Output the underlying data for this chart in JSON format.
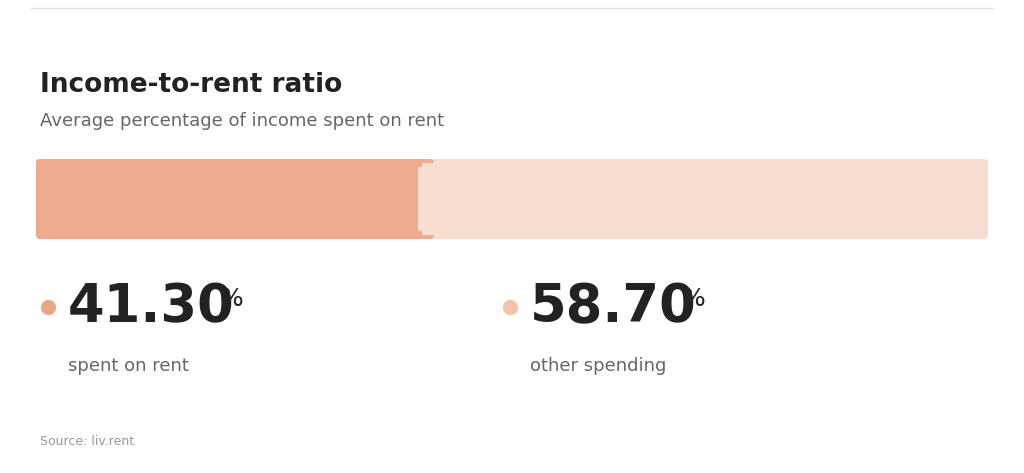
{
  "title": "Income-to-rent ratio",
  "subtitle": "Average percentage of income spent on rent",
  "source": "Source: liv.rent",
  "rent_pct": 41.3,
  "other_pct": 58.7,
  "rent_label": "spent on rent",
  "other_label": "other spending",
  "bar_color_dark": "#EEAB8E",
  "bar_color_light": "#F8DDD2",
  "dot_color_dark": "#E8A888",
  "dot_color_light": "#F2C4AB",
  "title_color": "#222222",
  "subtitle_color": "#666666",
  "source_color": "#999999",
  "bg_color": "#ffffff",
  "top_border_color": "#e0e0e0"
}
